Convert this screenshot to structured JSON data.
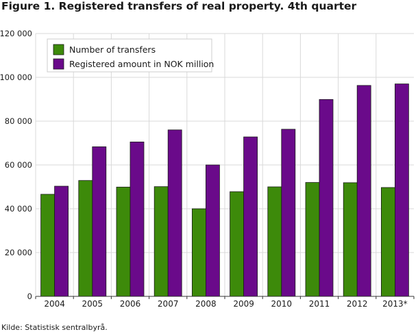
{
  "header": {
    "title": "Figure 1. Registered transfers of real property. 4th quarter"
  },
  "footer": {
    "source": "Kilde: Statistisk sentralbyrå."
  },
  "colors": {
    "transfers": "#3d8a0a",
    "amount": "#6a0a8a",
    "grid": "#d9d9d9",
    "axis": "#333333"
  },
  "chart_data": {
    "type": "bar",
    "title": "Figure 1. Registered transfers of real property. 4th quarter",
    "xlabel": "",
    "ylabel": "",
    "categories": [
      "2004",
      "2005",
      "2006",
      "2007",
      "2008",
      "2009",
      "2010",
      "2011",
      "2012",
      "2013*"
    ],
    "series": [
      {
        "name": "Number of transfers",
        "color": "#3d8a0a",
        "values": [
          46600,
          52900,
          49900,
          50100,
          40000,
          47800,
          50000,
          52000,
          51900,
          49700
        ]
      },
      {
        "name": "Registered amount in NOK million",
        "color": "#6a0a8a",
        "values": [
          50300,
          68300,
          70500,
          76000,
          60000,
          72800,
          76300,
          89900,
          96300,
          97000
        ]
      }
    ],
    "ylim": [
      0,
      120000
    ],
    "yticks": [
      0,
      20000,
      40000,
      60000,
      80000,
      100000,
      120000
    ],
    "ytick_labels": [
      "0",
      "20 000",
      "40 000",
      "60 000",
      "80 000",
      "100 000",
      "120 000"
    ],
    "grid": true,
    "legend_position": "top-left"
  }
}
